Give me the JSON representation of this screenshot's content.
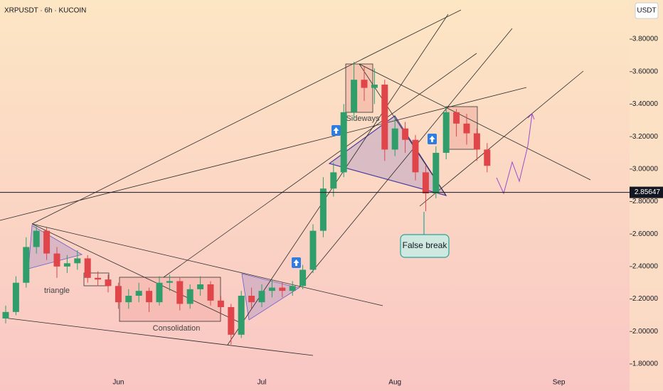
{
  "chart_data": {
    "type": "candlestick",
    "title": "XRPUSDT · 6h · KUCOIN",
    "currency": "USDT",
    "annotations": [
      "triangle",
      "Consolidation",
      "Sideways",
      "False break"
    ],
    "last_price": 2.85647,
    "categories": [
      null,
      null,
      null,
      null,
      null,
      null,
      null,
      null,
      null,
      null,
      null,
      "Jun",
      null,
      null,
      null,
      null,
      null,
      null,
      null,
      null,
      null,
      null,
      null,
      null,
      null,
      "Jul",
      null,
      null,
      null,
      null,
      null,
      null,
      null,
      null,
      null,
      null,
      null,
      null,
      "Aug",
      null,
      null,
      null,
      null,
      null,
      null,
      null,
      null,
      null,
      null,
      null,
      null,
      null,
      null,
      null,
      "Sep",
      null,
      null,
      null,
      null,
      null,
      null,
      null
    ],
    "open": [
      2.08,
      2.12,
      2.3,
      2.52,
      2.62,
      2.48,
      2.4,
      2.42,
      2.45,
      2.33,
      2.32,
      2.28,
      2.18,
      2.22,
      2.25,
      2.18,
      2.3,
      2.31,
      2.17,
      2.26,
      2.29,
      2.19,
      2.15,
      1.98,
      2.22,
      2.18,
      2.25,
      2.27,
      2.25,
      2.28,
      2.38,
      2.62,
      2.88,
      2.98,
      3.35,
      3.55,
      3.5,
      3.52,
      3.12,
      3.25,
      3.18,
      2.98,
      2.85,
      3.1,
      3.35,
      3.28,
      3.22,
      3.12,
      null,
      null,
      null,
      null,
      null,
      null,
      null,
      null,
      null,
      null,
      null,
      null,
      null,
      null
    ],
    "high": [
      2.16,
      2.34,
      2.58,
      2.66,
      2.64,
      2.52,
      2.47,
      2.5,
      2.47,
      2.37,
      2.35,
      2.3,
      2.26,
      2.3,
      2.27,
      2.34,
      2.35,
      2.33,
      2.29,
      2.34,
      2.31,
      2.22,
      2.17,
      2.25,
      2.27,
      2.29,
      2.32,
      2.3,
      2.31,
      2.41,
      2.66,
      2.95,
      3.04,
      3.4,
      3.66,
      3.63,
      3.62,
      3.55,
      3.32,
      3.29,
      3.21,
      3.02,
      3.14,
      3.38,
      3.37,
      3.34,
      3.25,
      3.16,
      null,
      null,
      null,
      null,
      null,
      null,
      null,
      null,
      null,
      null,
      null,
      null,
      null,
      null
    ],
    "low": [
      2.05,
      2.1,
      2.27,
      2.48,
      2.44,
      2.33,
      2.36,
      2.38,
      2.3,
      2.28,
      2.24,
      2.14,
      2.14,
      2.18,
      2.12,
      2.16,
      2.25,
      2.13,
      2.14,
      2.22,
      2.16,
      2.1,
      1.92,
      1.96,
      2.14,
      2.15,
      2.21,
      2.21,
      2.22,
      2.26,
      2.36,
      2.58,
      2.83,
      2.95,
      3.3,
      3.42,
      3.4,
      3.05,
      3.08,
      3.1,
      2.93,
      2.74,
      2.82,
      3.06,
      3.2,
      3.15,
      3.05,
      2.98,
      null,
      null,
      null,
      null,
      null,
      null,
      null,
      null,
      null,
      null,
      null,
      null,
      null,
      null
    ],
    "close": [
      2.12,
      2.3,
      2.52,
      2.62,
      2.48,
      2.4,
      2.42,
      2.45,
      2.33,
      2.32,
      2.28,
      2.18,
      2.22,
      2.25,
      2.18,
      2.3,
      2.31,
      2.17,
      2.26,
      2.29,
      2.19,
      2.15,
      1.98,
      2.22,
      2.18,
      2.25,
      2.27,
      2.25,
      2.28,
      2.38,
      2.62,
      2.88,
      2.98,
      3.35,
      3.55,
      3.5,
      3.52,
      3.12,
      3.25,
      3.18,
      2.98,
      2.85,
      3.1,
      3.35,
      3.28,
      3.22,
      3.12,
      3.02,
      null,
      null,
      null,
      null,
      null,
      null,
      null,
      null,
      null,
      null,
      null,
      null,
      null,
      null
    ],
    "up_color": "#2f9e6a",
    "down_color": "#e0454a",
    "ylim": [
      1.756,
      4.041
    ],
    "yticks": [
      {
        "value": 1.8,
        "label": "1.80000"
      },
      {
        "value": 2.0,
        "label": "2.00000"
      },
      {
        "value": 2.2,
        "label": "2.20000"
      },
      {
        "value": 2.4,
        "label": "2.40000"
      },
      {
        "value": 2.6,
        "label": "2.60000"
      },
      {
        "value": 2.8,
        "label": "2.80000"
      },
      {
        "value": 3.0,
        "label": "3.00000"
      },
      {
        "value": 3.2,
        "label": "3.20000"
      },
      {
        "value": 3.4,
        "label": "3.40000"
      },
      {
        "value": 3.6,
        "label": "3.60000"
      },
      {
        "value": 3.8,
        "label": "3.80000"
      }
    ]
  }
}
